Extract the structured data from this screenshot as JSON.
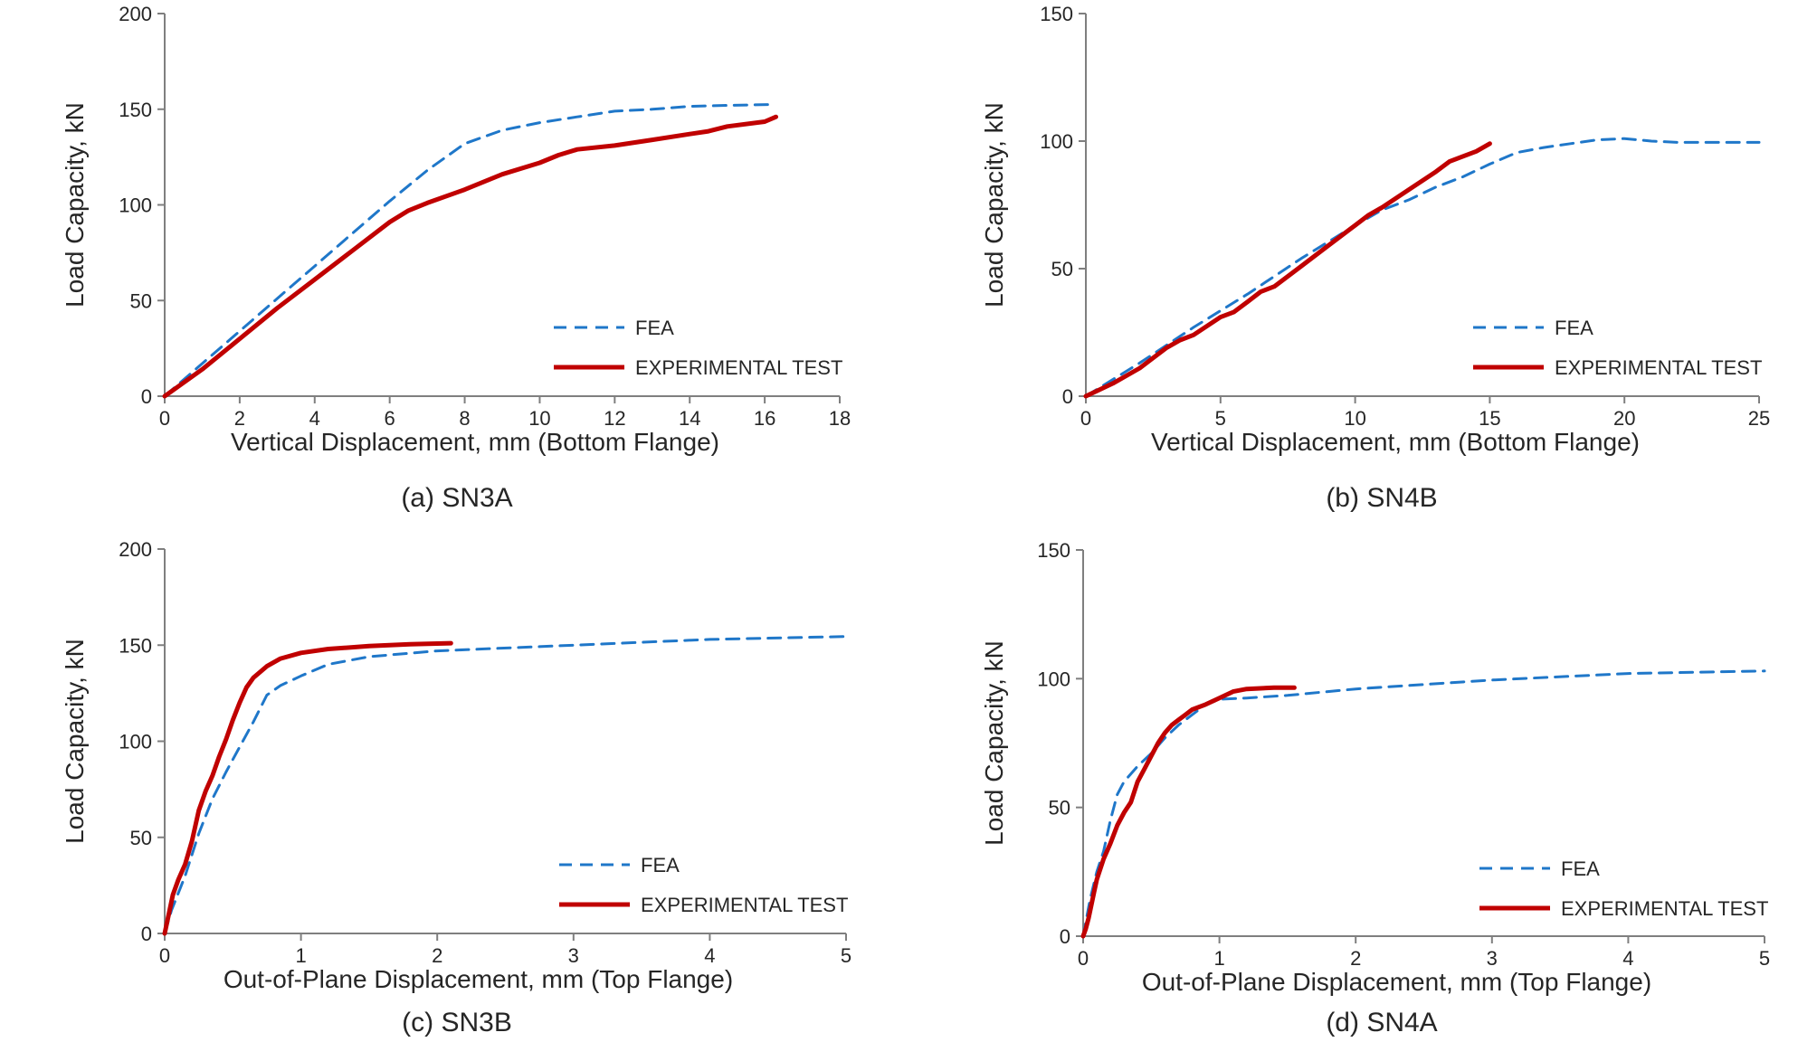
{
  "colors": {
    "fea": "#1F77C9",
    "experimental": "#C00000",
    "axis": "#7F7F7F",
    "text": "#262626"
  },
  "chart_data": [
    {
      "id": "a",
      "type": "line",
      "caption": "(a) SN3A",
      "xlabel": "Vertical Displacement, mm (Bottom Flange)",
      "ylabel": "Load Capacity, kN",
      "xlim": [
        0,
        18
      ],
      "ylim": [
        0,
        200
      ],
      "xticks": [
        0,
        2,
        4,
        6,
        8,
        10,
        12,
        14,
        16,
        18
      ],
      "yticks": [
        0,
        50,
        100,
        150,
        200
      ],
      "grid": false,
      "legend_position": "bottom-right",
      "series": [
        {
          "name": "FEA",
          "style": "dashed",
          "x": [
            0,
            1,
            2,
            3,
            4,
            5,
            6,
            7,
            8,
            9,
            10,
            11,
            12,
            13,
            14,
            15,
            16.2
          ],
          "y": [
            0,
            17,
            34,
            51,
            68,
            85,
            102,
            118,
            132,
            139,
            143,
            146,
            149,
            150,
            151.5,
            152,
            152.5
          ]
        },
        {
          "name": "EXPERIMENTAL TEST",
          "style": "solid",
          "x": [
            0,
            1,
            2,
            3,
            4,
            5,
            6,
            6.5,
            7,
            8,
            9,
            10,
            10.5,
            11,
            12,
            13,
            14,
            14.5,
            15,
            16,
            16.3
          ],
          "y": [
            0,
            14,
            30,
            46,
            61,
            76,
            91,
            97,
            101,
            108,
            116,
            122,
            126,
            129,
            131,
            134,
            137,
            138.5,
            141,
            143.5,
            146
          ]
        }
      ]
    },
    {
      "id": "b",
      "type": "line",
      "caption": "(b) SN4B",
      "xlabel": "Vertical Displacement, mm (Bottom Flange)",
      "ylabel": "Load Capacity, kN",
      "xlim": [
        0,
        25
      ],
      "ylim": [
        0,
        150
      ],
      "xticks": [
        0,
        5,
        10,
        15,
        20,
        25
      ],
      "yticks": [
        0,
        50,
        100,
        150
      ],
      "grid": false,
      "legend_position": "bottom-right",
      "series": [
        {
          "name": "FEA",
          "style": "dashed",
          "x": [
            0,
            2,
            4,
            6,
            8,
            10,
            11,
            12,
            13,
            14,
            15,
            16,
            17,
            18,
            19,
            20,
            21,
            22,
            25
          ],
          "y": [
            0,
            13,
            27,
            40,
            54,
            67,
            73,
            77,
            82,
            86,
            91,
            95.5,
            97.5,
            99,
            100.5,
            101,
            100,
            99.5,
            99.5
          ]
        },
        {
          "name": "EXPERIMENTAL TEST",
          "style": "solid",
          "x": [
            0,
            1,
            2,
            3,
            3.5,
            4,
            5,
            5.5,
            6,
            6.5,
            7,
            8,
            9,
            10,
            10.5,
            11,
            12,
            13,
            13.5,
            14,
            14.5,
            15
          ],
          "y": [
            0,
            5,
            11,
            19,
            22,
            24,
            31,
            33,
            37,
            41,
            43,
            51,
            59,
            67,
            71,
            74,
            81,
            88,
            92,
            94,
            96,
            99
          ]
        }
      ]
    },
    {
      "id": "c",
      "type": "line",
      "caption": "(c) SN3B",
      "xlabel": "Out-of-Plane Displacement, mm (Top Flange)",
      "ylabel": "Load Capacity, kN",
      "xlim": [
        0,
        5
      ],
      "ylim": [
        0,
        200
      ],
      "xticks": [
        0,
        1,
        2,
        3,
        4,
        5
      ],
      "yticks": [
        0,
        50,
        100,
        150,
        200
      ],
      "grid": false,
      "legend_position": "bottom-right",
      "series": [
        {
          "name": "FEA",
          "style": "dashed",
          "x": [
            0,
            0.05,
            0.15,
            0.25,
            0.35,
            0.45,
            0.55,
            0.65,
            0.75,
            0.85,
            1.0,
            1.2,
            1.5,
            2.0,
            3.0,
            4.0,
            5.0
          ],
          "y": [
            0,
            12,
            30,
            52,
            70,
            84,
            97,
            110,
            124,
            129,
            134,
            140,
            144,
            147,
            150,
            153,
            154.5
          ]
        },
        {
          "name": "EXPERIMENTAL TEST",
          "style": "solid",
          "x": [
            0,
            0.03,
            0.06,
            0.1,
            0.15,
            0.2,
            0.25,
            0.3,
            0.35,
            0.4,
            0.45,
            0.5,
            0.55,
            0.6,
            0.65,
            0.7,
            0.75,
            0.85,
            1.0,
            1.2,
            1.5,
            1.8,
            2.1
          ],
          "y": [
            0,
            10,
            20,
            28,
            36,
            48,
            64,
            74,
            82,
            92,
            101,
            111,
            120,
            128,
            133,
            136,
            139,
            143,
            146,
            148,
            149.5,
            150.5,
            151
          ]
        }
      ]
    },
    {
      "id": "d",
      "type": "line",
      "caption": "(d) SN4A",
      "xlabel": "Out-of-Plane Displacement, mm (Top Flange)",
      "ylabel": "Load Capacity, kN",
      "xlim": [
        0,
        5
      ],
      "ylim": [
        0,
        150
      ],
      "xticks": [
        0,
        1,
        2,
        3,
        4,
        5
      ],
      "yticks": [
        0,
        50,
        100,
        150
      ],
      "grid": false,
      "legend_position": "bottom-right",
      "series": [
        {
          "name": "FEA",
          "style": "dashed",
          "x": [
            0,
            0.05,
            0.1,
            0.15,
            0.2,
            0.25,
            0.3,
            0.4,
            0.5,
            0.6,
            0.7,
            0.8,
            0.9,
            1.0,
            1.2,
            1.5,
            2.0,
            3.0,
            4.0,
            5.0
          ],
          "y": [
            0,
            14,
            25,
            33,
            45,
            55,
            60,
            66,
            71,
            77,
            82,
            86,
            90,
            92,
            92.5,
            93.5,
            96,
            99.5,
            102,
            103
          ]
        },
        {
          "name": "EXPERIMENTAL TEST",
          "style": "solid",
          "x": [
            0,
            0.02,
            0.04,
            0.06,
            0.08,
            0.1,
            0.15,
            0.2,
            0.25,
            0.3,
            0.35,
            0.4,
            0.45,
            0.5,
            0.55,
            0.6,
            0.65,
            0.7,
            0.75,
            0.8,
            0.9,
            1.0,
            1.1,
            1.2,
            1.4,
            1.55
          ],
          "y": [
            0,
            3,
            7,
            12,
            17,
            22,
            30,
            36,
            43,
            48,
            52,
            60,
            65,
            70,
            75,
            79,
            82,
            84,
            86,
            88,
            90,
            92.5,
            95,
            96,
            96.5,
            96.5
          ]
        }
      ]
    }
  ]
}
